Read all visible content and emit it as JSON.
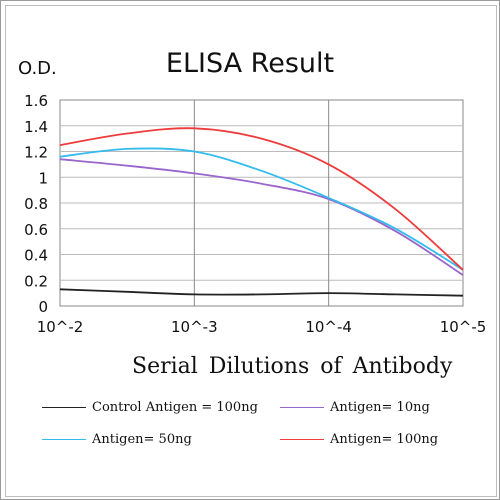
{
  "chart_data": {
    "type": "line",
    "title": "ELISA Result",
    "ylabel": "O.D.",
    "xlabel": "Serial Dilutions of Antibody",
    "x_ticks": [
      "10^-2",
      "10^-3",
      "10^-4",
      "10^-5"
    ],
    "y_ticks": [
      "0",
      "0.2",
      "0.4",
      "0.6",
      "0.8",
      "1",
      "1.2",
      "1.4",
      "1.6"
    ],
    "ylim": [
      0,
      1.6
    ],
    "xlim": [
      -2,
      -5
    ],
    "grid": true,
    "legend_position": "bottom",
    "series": [
      {
        "name": "Control Antigen = 100ng",
        "color": "#222222",
        "x": [
          -2,
          -2.5,
          -3,
          -3.5,
          -4,
          -4.5,
          -5
        ],
        "y": [
          0.13,
          0.11,
          0.09,
          0.09,
          0.1,
          0.09,
          0.08
        ]
      },
      {
        "name": "Antigen= 10ng",
        "color": "#9966cc",
        "x": [
          -2,
          -2.5,
          -3,
          -3.5,
          -4,
          -4.5,
          -5
        ],
        "y": [
          1.14,
          1.09,
          1.03,
          0.95,
          0.83,
          0.58,
          0.24
        ]
      },
      {
        "name": "Antigen= 50ng",
        "color": "#33bbee",
        "x": [
          -2,
          -2.5,
          -3,
          -3.5,
          -4,
          -4.5,
          -5
        ],
        "y": [
          1.16,
          1.22,
          1.2,
          1.05,
          0.84,
          0.6,
          0.28
        ]
      },
      {
        "name": "Antigen= 100ng",
        "color": "#ee3b3b",
        "x": [
          -2,
          -2.5,
          -3,
          -3.5,
          -4,
          -4.5,
          -5
        ],
        "y": [
          1.25,
          1.34,
          1.38,
          1.3,
          1.1,
          0.75,
          0.28
        ]
      }
    ]
  }
}
